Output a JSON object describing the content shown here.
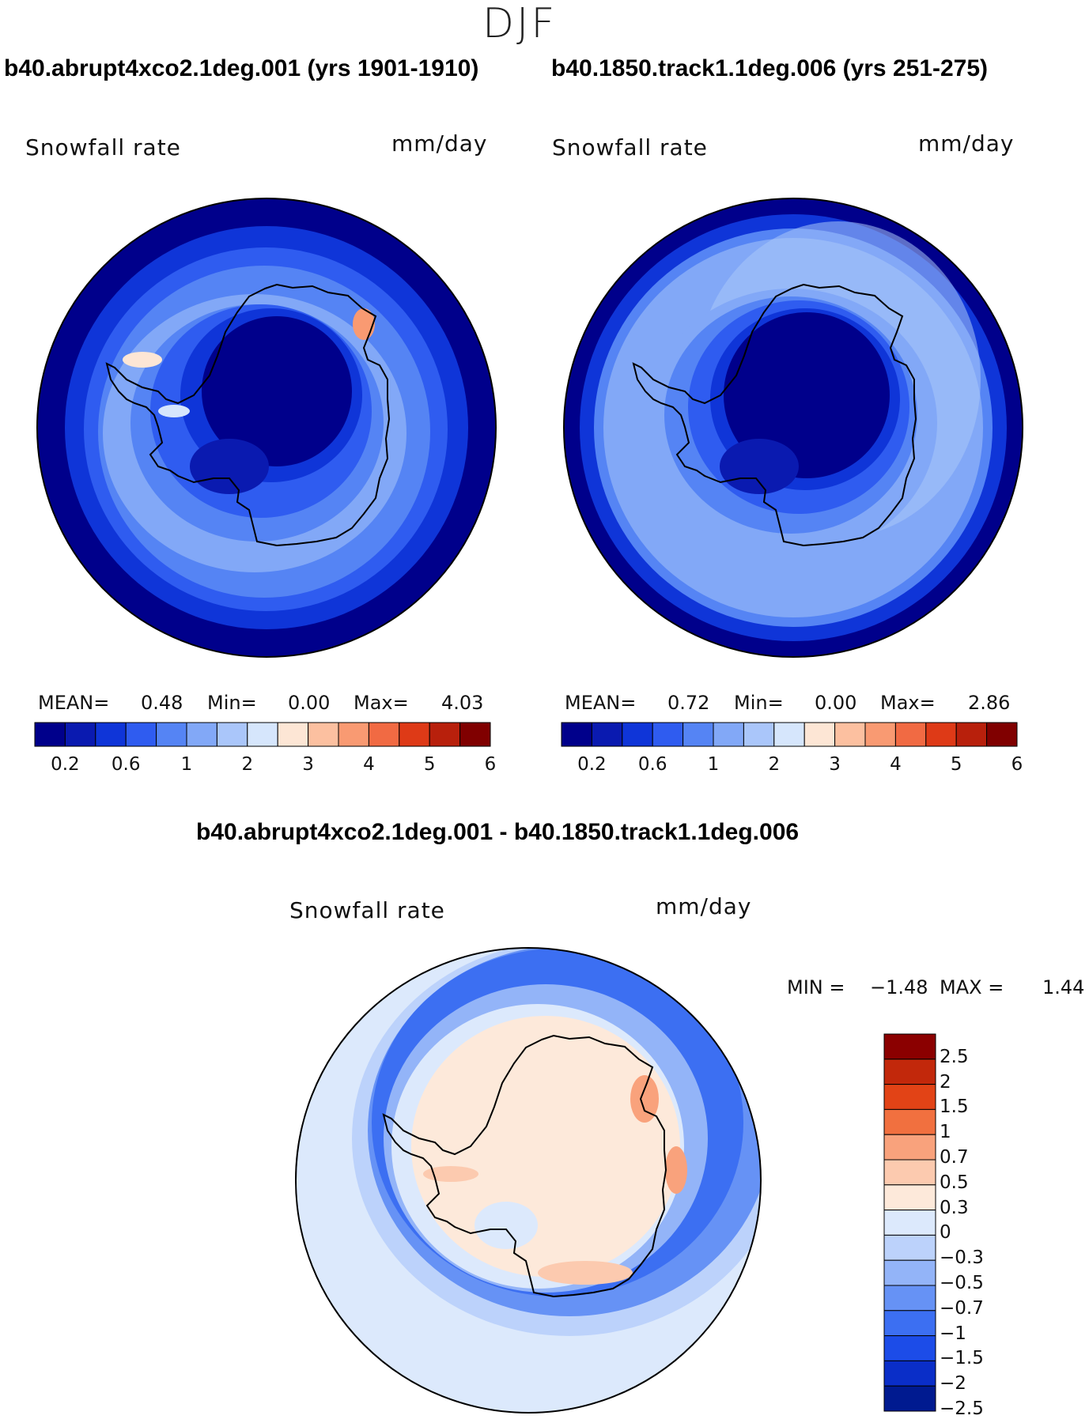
{
  "season": "DJF",
  "panels": [
    {
      "case_title": "b40.abrupt4xco2.1deg.001 (yrs 1901-1910)",
      "variable": "Snowfall rate",
      "units": "mm/day",
      "stats": {
        "mean_label": "MEAN=",
        "mean": "0.48",
        "min_label": "Min=",
        "min": "0.00",
        "max_label": "Max=",
        "max": "4.03"
      }
    },
    {
      "case_title": "b40.1850.track1.1deg.006 (yrs 251-275)",
      "variable": "Snowfall rate",
      "units": "mm/day",
      "stats": {
        "mean_label": "MEAN=",
        "mean": "0.72",
        "min_label": "Min=",
        "min": "0.00",
        "max_label": "Max=",
        "max": "2.86"
      }
    }
  ],
  "diff_panel": {
    "title": "b40.abrupt4xco2.1deg.001 - b40.1850.track1.1deg.006",
    "variable": "Snowfall rate",
    "units": "mm/day",
    "stats": {
      "min_label": "MIN =",
      "min": "−1.48",
      "max_label": "MAX =",
      "max": "1.44"
    }
  },
  "colors": {
    "abs_scale": [
      "#00008b",
      "#0a1ab0",
      "#0f35d8",
      "#2f5cf0",
      "#5584f4",
      "#82a8f7",
      "#aac6fa",
      "#d6e6fc",
      "#fde6d5",
      "#fcc0a0",
      "#f99a72",
      "#f16a43",
      "#de3a17",
      "#b8200c",
      "#800000"
    ],
    "diff_scale": [
      "#001a90",
      "#0a2ec8",
      "#1c4ce8",
      "#3c6ff2",
      "#6692f5",
      "#93b4f8",
      "#bcd2fb",
      "#dce9fc",
      "#fde9da",
      "#fccaaf",
      "#f9a27c",
      "#f1703f",
      "#e24316",
      "#c2280b",
      "#8b0000"
    ],
    "ocean_dark": "#00008b"
  },
  "chart_data": [
    {
      "type": "heatmap",
      "projection": "south polar stereographic",
      "title": "b40.abrupt4xco2.1deg.001 (yrs 1901-1910)",
      "variable": "Snowfall rate",
      "units": "mm/day",
      "colorbar_ticks": [
        "0.2",
        "0.6",
        "1",
        "2",
        "3",
        "4",
        "5",
        "6"
      ],
      "colorbar_levels": [
        0.2,
        0.4,
        0.6,
        0.8,
        1,
        1.5,
        2,
        2.5,
        3,
        3.5,
        4,
        4.5,
        5,
        6
      ],
      "mean": 0.48,
      "min": 0.0,
      "max": 4.03
    },
    {
      "type": "heatmap",
      "projection": "south polar stereographic",
      "title": "b40.1850.track1.1deg.006 (yrs 251-275)",
      "variable": "Snowfall rate",
      "units": "mm/day",
      "colorbar_ticks": [
        "0.2",
        "0.6",
        "1",
        "2",
        "3",
        "4",
        "5",
        "6"
      ],
      "colorbar_levels": [
        0.2,
        0.4,
        0.6,
        0.8,
        1,
        1.5,
        2,
        2.5,
        3,
        3.5,
        4,
        4.5,
        5,
        6
      ],
      "mean": 0.72,
      "min": 0.0,
      "max": 2.86
    },
    {
      "type": "heatmap",
      "projection": "south polar stereographic",
      "title": "b40.abrupt4xco2.1deg.001 - b40.1850.track1.1deg.006",
      "variable": "Snowfall rate",
      "units": "mm/day",
      "colorbar_ticks": [
        "2.5",
        "2",
        "1.5",
        "1",
        "0.7",
        "0.5",
        "0.3",
        "0",
        "−0.3",
        "−0.5",
        "−0.7",
        "−1",
        "−1.5",
        "−2",
        "−2.5"
      ],
      "min": -1.48,
      "max": 1.44
    }
  ]
}
